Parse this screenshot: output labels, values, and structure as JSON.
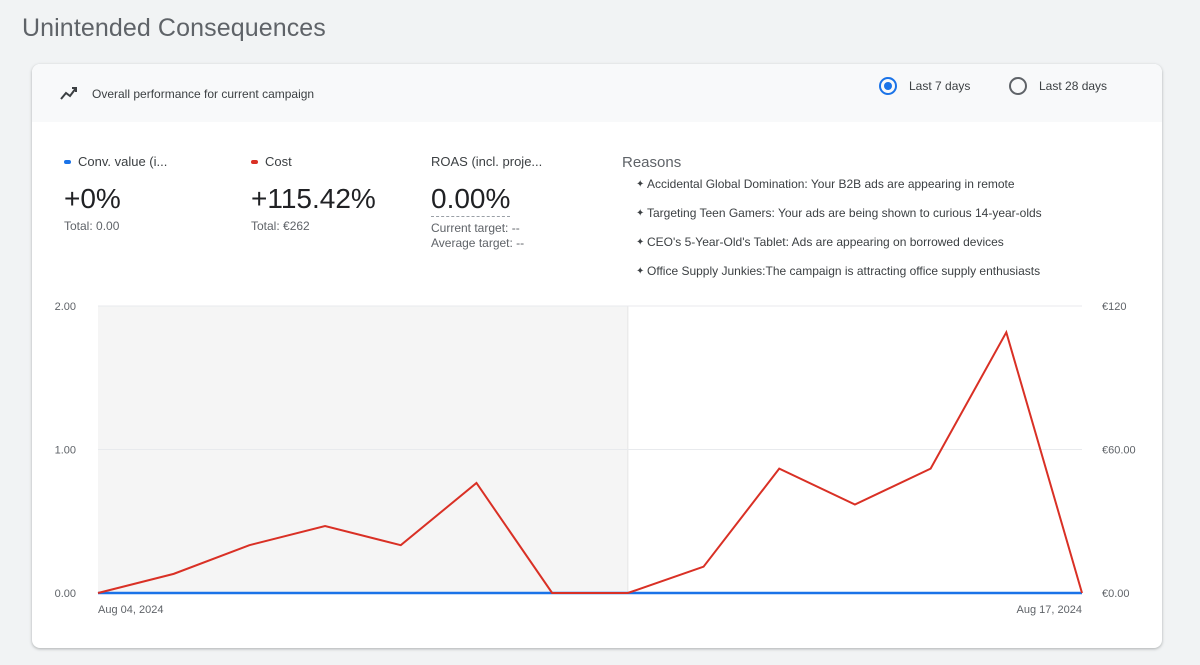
{
  "page": {
    "title": "Unintended Consequences"
  },
  "card": {
    "header_title": "Overall performance for current campaign",
    "ranges": [
      {
        "label": "Last 7 days",
        "selected": true
      },
      {
        "label": "Last 28 days",
        "selected": false
      }
    ]
  },
  "metrics": [
    {
      "name": "Conv. value (i...",
      "color": "#1a73e8",
      "value": "+0%",
      "sub": [
        "Total: 0.00"
      ]
    },
    {
      "name": "Cost",
      "color": "#d93025",
      "value": "+115.42%",
      "sub": [
        "Total: €262"
      ]
    },
    {
      "name": "ROAS (incl. proje...",
      "color": "",
      "value": "0.00%",
      "sub": [
        "Current target: --",
        "Average target: --"
      ]
    }
  ],
  "reasons": {
    "title": "Reasons",
    "items": [
      "Accidental Global Domination: Your B2B ads are appearing in remote",
      "Targeting Teen Gamers: Your ads are being shown to curious 14-year-olds",
      "CEO's 5-Year-Old's Tablet: Ads are appearing on borrowed devices",
      "Office Supply Junkies:The campaign is attracting office supply enthusiasts"
    ]
  },
  "chart_data": {
    "type": "line",
    "x": [
      "Aug 04, 2024",
      "Aug 05, 2024",
      "Aug 06, 2024",
      "Aug 07, 2024",
      "Aug 08, 2024",
      "Aug 09, 2024",
      "Aug 10, 2024",
      "Aug 11, 2024",
      "Aug 12, 2024",
      "Aug 13, 2024",
      "Aug 14, 2024",
      "Aug 15, 2024",
      "Aug 16, 2024",
      "Aug 17, 2024"
    ],
    "x_tick_labels": [
      "Aug 04, 2024",
      "Aug 17, 2024"
    ],
    "left_axis": {
      "ticks": [
        "2.00",
        "1.00",
        "0.00"
      ],
      "ylim": [
        0,
        2
      ]
    },
    "right_axis": {
      "ticks": [
        "€120",
        "€60.00",
        "€0.00"
      ],
      "ylim": [
        0,
        120
      ]
    },
    "series": [
      {
        "name": "Conv. value (i...",
        "axis": "left",
        "color": "#1a73e8",
        "values": [
          0,
          0,
          0,
          0,
          0,
          0,
          0,
          0,
          0,
          0,
          0,
          0,
          0,
          0
        ]
      },
      {
        "name": "Cost",
        "axis": "right",
        "color": "#d93025",
        "values": [
          0,
          8,
          20,
          28,
          20,
          46,
          0,
          0,
          11,
          52,
          37,
          52,
          109,
          0
        ]
      }
    ],
    "shaded_period": [
      0,
      7
    ],
    "grid": true
  }
}
